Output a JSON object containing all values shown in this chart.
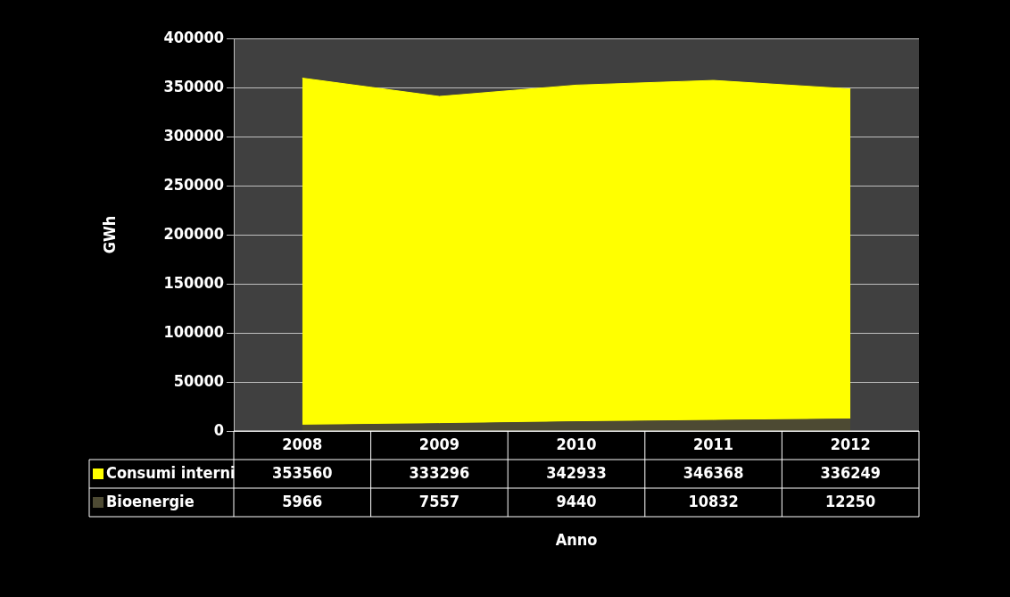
{
  "chart_data": {
    "type": "area",
    "stacked": true,
    "ylabel": "GWh",
    "xlabel": "Anno",
    "categories": [
      "2008",
      "2009",
      "2010",
      "2011",
      "2012"
    ],
    "series": [
      {
        "name": "Bioenergie",
        "color": "#4d4a33",
        "values": [
          5966,
          7557,
          9440,
          10832,
          12250
        ]
      },
      {
        "name": "Consumi interni",
        "color": "#ffff00",
        "values": [
          353560,
          333296,
          342933,
          346368,
          336249
        ]
      }
    ],
    "ylim": [
      0,
      400000
    ],
    "yticks": [
      0,
      50000,
      100000,
      150000,
      200000,
      250000,
      300000,
      350000,
      400000
    ],
    "grid": "y",
    "legend": "bottom",
    "data_labels": true
  }
}
